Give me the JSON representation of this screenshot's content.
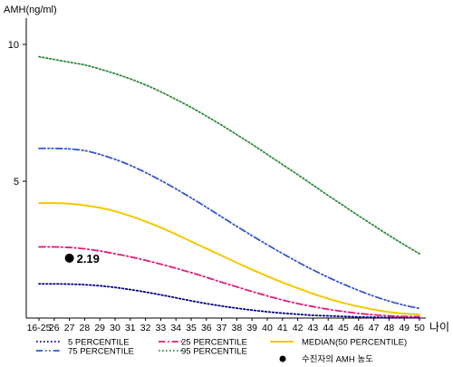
{
  "chart_data": {
    "type": "line",
    "ylabel": "AMH(ng/ml)",
    "xlabel": "나이",
    "yticks": [
      5,
      10
    ],
    "ylim": [
      0,
      11
    ],
    "categories": [
      "16-25",
      "26",
      "27",
      "28",
      "29",
      "30",
      "31",
      "32",
      "33",
      "34",
      "35",
      "36",
      "37",
      "38",
      "39",
      "40",
      "41",
      "42",
      "43",
      "44",
      "45",
      "46",
      "47",
      "48",
      "49",
      "50"
    ],
    "series": [
      {
        "name": "5 PERCENTILE",
        "color": "#000080",
        "dash": "dotted",
        "values": [
          1.25,
          1.25,
          1.24,
          1.22,
          1.18,
          1.12,
          1.04,
          0.95,
          0.85,
          0.74,
          0.63,
          0.53,
          0.44,
          0.36,
          0.29,
          0.23,
          0.18,
          0.14,
          0.1,
          0.08,
          0.06,
          0.04,
          0.03,
          0.02,
          0.02,
          0.01
        ]
      },
      {
        "name": "25 PERCENTILE",
        "color": "#e0197d",
        "dash": "dashdot",
        "values": [
          2.6,
          2.6,
          2.58,
          2.53,
          2.45,
          2.35,
          2.24,
          2.11,
          1.97,
          1.82,
          1.66,
          1.49,
          1.31,
          1.14,
          0.97,
          0.81,
          0.66,
          0.53,
          0.42,
          0.32,
          0.24,
          0.17,
          0.12,
          0.08,
          0.06,
          0.05
        ]
      },
      {
        "name": "MEDIAN(50 PERCENTILE)",
        "color": "#f5c800",
        "dash": "solid",
        "values": [
          4.2,
          4.2,
          4.18,
          4.12,
          4.03,
          3.9,
          3.73,
          3.53,
          3.31,
          3.06,
          2.8,
          2.54,
          2.28,
          2.02,
          1.77,
          1.53,
          1.3,
          1.09,
          0.89,
          0.71,
          0.55,
          0.42,
          0.31,
          0.22,
          0.16,
          0.13
        ]
      },
      {
        "name": "75 PERCENTILE",
        "color": "#3355cc",
        "dash": "dashdotdot",
        "values": [
          6.2,
          6.2,
          6.18,
          6.12,
          5.98,
          5.8,
          5.58,
          5.32,
          5.03,
          4.72,
          4.39,
          4.05,
          3.7,
          3.35,
          3.01,
          2.68,
          2.36,
          2.05,
          1.76,
          1.49,
          1.24,
          1.01,
          0.8,
          0.62,
          0.47,
          0.35
        ]
      },
      {
        "name": "95 PERCENTILE",
        "color": "#2e8b3e",
        "dash": "dotted",
        "values": [
          9.55,
          9.45,
          9.35,
          9.25,
          9.1,
          8.93,
          8.74,
          8.52,
          8.27,
          7.99,
          7.7,
          7.38,
          7.05,
          6.7,
          6.35,
          5.98,
          5.61,
          5.24,
          4.86,
          4.48,
          4.11,
          3.74,
          3.38,
          3.02,
          2.68,
          2.35
        ]
      }
    ],
    "point": {
      "legend": "수진자의 AMH 농도",
      "label": "2.19",
      "x": "27",
      "y": 2.19
    },
    "legend_position": "bottom",
    "grid": false
  }
}
